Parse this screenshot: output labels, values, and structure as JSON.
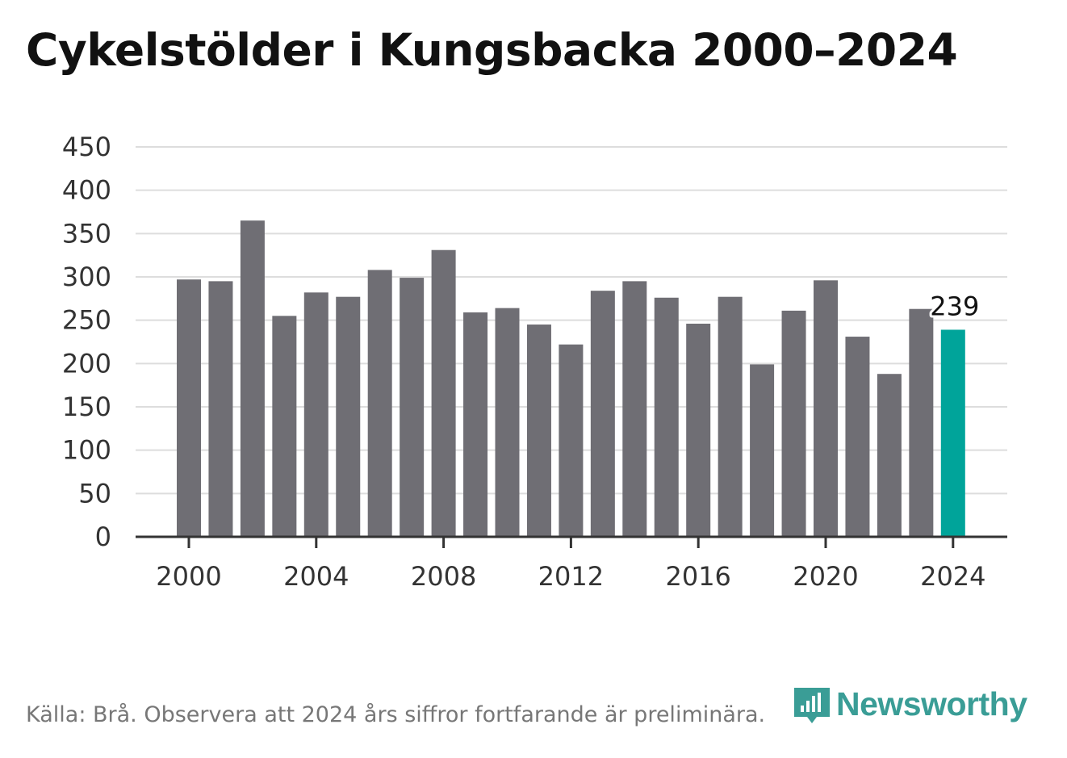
{
  "title": "Cykelstölder i Kungsbacka 2000–2024",
  "source": "Källa: Brå. Observera att 2024 års siffror fortfarande är preliminära.",
  "brand": {
    "name": "Newsworthy",
    "icon": "newsworthy-logo-icon",
    "color": "#3a9d96"
  },
  "colors": {
    "bar": "#6f6e74",
    "highlight": "#00a49a",
    "grid": "#dddddd",
    "axis": "#333333"
  },
  "chart_data": {
    "type": "bar",
    "title": "Cykelstölder i Kungsbacka 2000–2024",
    "xlabel": "",
    "ylabel": "",
    "categories": [
      "2000",
      "2001",
      "2002",
      "2003",
      "2004",
      "2005",
      "2006",
      "2007",
      "2008",
      "2009",
      "2010",
      "2011",
      "2012",
      "2013",
      "2014",
      "2015",
      "2016",
      "2017",
      "2018",
      "2019",
      "2020",
      "2021",
      "2022",
      "2023",
      "2024"
    ],
    "values": [
      297,
      295,
      365,
      255,
      282,
      277,
      308,
      299,
      331,
      259,
      264,
      245,
      222,
      284,
      295,
      276,
      246,
      277,
      199,
      261,
      296,
      231,
      188,
      263,
      239
    ],
    "ylim": [
      0,
      450
    ],
    "yticks": [
      "0",
      "50",
      "100",
      "150",
      "200",
      "250",
      "300",
      "350",
      "400",
      "450"
    ],
    "xticks": [
      "2000",
      "2004",
      "2008",
      "2012",
      "2016",
      "2020",
      "2024"
    ],
    "highlight_category": "2024",
    "annotations": [
      {
        "category": "2024",
        "text": "239"
      }
    ],
    "grid": true
  }
}
